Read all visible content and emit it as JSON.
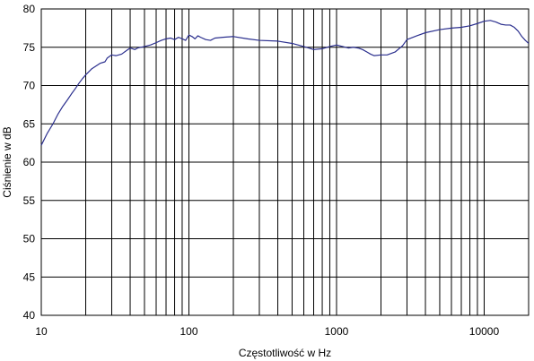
{
  "chart_data": {
    "type": "line",
    "title": "",
    "xlabel": "Częstotliwość w Hz",
    "ylabel": "Ciśnienie w dB",
    "x_scale": "log",
    "xlim": [
      10,
      20000
    ],
    "ylim": [
      40,
      80
    ],
    "x_ticks": [
      10,
      100,
      1000,
      10000
    ],
    "x_tick_labels": [
      "10",
      "100",
      "1000",
      "10000"
    ],
    "y_ticks": [
      40,
      45,
      50,
      55,
      60,
      65,
      70,
      75,
      80
    ],
    "y_tick_labels": [
      "40",
      "45",
      "50",
      "55",
      "60",
      "65",
      "70",
      "75",
      "80"
    ],
    "grid": "major and minor vertical lines (log decades), horizontal at each y tick",
    "legend": "none",
    "series": [
      {
        "color": "#2b2f8e",
        "points": [
          [
            10,
            62.2
          ],
          [
            11,
            63.8
          ],
          [
            12,
            65.0
          ],
          [
            13,
            66.3
          ],
          [
            14,
            67.3
          ],
          [
            15,
            68.1
          ],
          [
            16,
            68.9
          ],
          [
            17,
            69.6
          ],
          [
            18,
            70.3
          ],
          [
            19,
            70.9
          ],
          [
            20,
            71.4
          ],
          [
            22,
            72.2
          ],
          [
            25,
            72.9
          ],
          [
            27,
            73.1
          ],
          [
            28,
            73.6
          ],
          [
            30,
            74.0
          ],
          [
            32,
            73.9
          ],
          [
            35,
            74.1
          ],
          [
            38,
            74.6
          ],
          [
            40,
            74.9
          ],
          [
            43,
            74.7
          ],
          [
            45,
            74.9
          ],
          [
            50,
            75.1
          ],
          [
            55,
            75.3
          ],
          [
            60,
            75.6
          ],
          [
            65,
            75.9
          ],
          [
            70,
            76.1
          ],
          [
            75,
            76.2
          ],
          [
            80,
            76.0
          ],
          [
            85,
            76.3
          ],
          [
            90,
            76.1
          ],
          [
            95,
            75.9
          ],
          [
            100,
            76.6
          ],
          [
            105,
            76.4
          ],
          [
            110,
            76.1
          ],
          [
            115,
            76.5
          ],
          [
            120,
            76.3
          ],
          [
            130,
            76.0
          ],
          [
            140,
            75.9
          ],
          [
            150,
            76.2
          ],
          [
            170,
            76.3
          ],
          [
            200,
            76.4
          ],
          [
            250,
            76.1
          ],
          [
            300,
            75.9
          ],
          [
            400,
            75.8
          ],
          [
            500,
            75.5
          ],
          [
            600,
            75.1
          ],
          [
            700,
            74.7
          ],
          [
            800,
            74.8
          ],
          [
            900,
            75.1
          ],
          [
            1000,
            75.3
          ],
          [
            1100,
            75.1
          ],
          [
            1200,
            74.9
          ],
          [
            1300,
            75.0
          ],
          [
            1400,
            74.9
          ],
          [
            1500,
            74.7
          ],
          [
            1600,
            74.4
          ],
          [
            1700,
            74.1
          ],
          [
            1800,
            73.9
          ],
          [
            2000,
            74.0
          ],
          [
            2200,
            74.0
          ],
          [
            2500,
            74.4
          ],
          [
            2800,
            75.2
          ],
          [
            3000,
            76.0
          ],
          [
            3500,
            76.5
          ],
          [
            4000,
            76.9
          ],
          [
            5000,
            77.3
          ],
          [
            6000,
            77.5
          ],
          [
            7000,
            77.6
          ],
          [
            8000,
            77.8
          ],
          [
            9000,
            78.1
          ],
          [
            10000,
            78.4
          ],
          [
            11000,
            78.5
          ],
          [
            12000,
            78.3
          ],
          [
            13000,
            78.0
          ],
          [
            14000,
            77.9
          ],
          [
            15000,
            77.9
          ],
          [
            16000,
            77.6
          ],
          [
            17000,
            77.1
          ],
          [
            18000,
            76.4
          ],
          [
            19000,
            75.9
          ],
          [
            20000,
            75.5
          ]
        ]
      }
    ]
  }
}
